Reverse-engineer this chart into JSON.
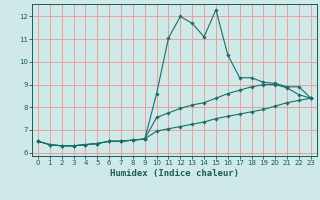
{
  "background_color": "#cfe8e8",
  "grid_color": "#e8a0a0",
  "line_color": "#1a6e6a",
  "marker_color": "#1a6e6a",
  "xlabel": "Humidex (Indice chaleur)",
  "xlim": [
    -0.5,
    23.5
  ],
  "ylim": [
    5.85,
    12.55
  ],
  "yticks": [
    6,
    7,
    8,
    9,
    10,
    11,
    12
  ],
  "xticks": [
    0,
    1,
    2,
    3,
    4,
    5,
    6,
    7,
    8,
    9,
    10,
    11,
    12,
    13,
    14,
    15,
    16,
    17,
    18,
    19,
    20,
    21,
    22,
    23
  ],
  "series1_x": [
    0,
    1,
    2,
    3,
    4,
    5,
    6,
    7,
    8,
    9,
    10,
    11,
    12,
    13,
    14,
    15,
    16,
    17,
    18,
    19,
    20,
    21,
    22,
    23
  ],
  "series1_y": [
    6.5,
    6.35,
    6.3,
    6.3,
    6.35,
    6.4,
    6.5,
    6.5,
    6.55,
    6.6,
    8.6,
    11.05,
    12.0,
    11.7,
    11.1,
    12.3,
    10.3,
    9.3,
    9.3,
    9.1,
    9.05,
    8.9,
    8.9,
    8.4
  ],
  "series2_x": [
    0,
    1,
    2,
    3,
    4,
    5,
    6,
    7,
    8,
    9,
    10,
    11,
    12,
    13,
    14,
    15,
    16,
    17,
    18,
    19,
    20,
    21,
    22,
    23
  ],
  "series2_y": [
    6.5,
    6.35,
    6.3,
    6.3,
    6.35,
    6.4,
    6.5,
    6.5,
    6.55,
    6.6,
    7.55,
    7.75,
    7.95,
    8.1,
    8.2,
    8.4,
    8.6,
    8.75,
    8.9,
    9.0,
    9.0,
    8.85,
    8.55,
    8.4
  ],
  "series3_x": [
    0,
    1,
    2,
    3,
    4,
    5,
    6,
    7,
    8,
    9,
    10,
    11,
    12,
    13,
    14,
    15,
    16,
    17,
    18,
    19,
    20,
    21,
    22,
    23
  ],
  "series3_y": [
    6.5,
    6.35,
    6.3,
    6.3,
    6.35,
    6.4,
    6.5,
    6.5,
    6.55,
    6.6,
    6.95,
    7.05,
    7.15,
    7.25,
    7.35,
    7.5,
    7.6,
    7.7,
    7.8,
    7.9,
    8.05,
    8.2,
    8.3,
    8.4
  ]
}
